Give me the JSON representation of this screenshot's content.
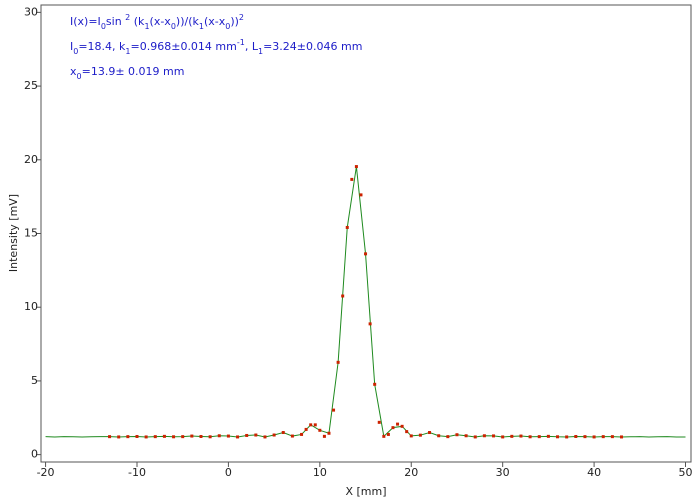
{
  "chart_data": {
    "type": "scatter",
    "xlabel": "X [mm]",
    "ylabel": "Intensity [mV]",
    "annotations": [
      [
        "I(x)=I",
        "0",
        "sin ",
        "2",
        " (k",
        "1",
        "(x-x",
        "0",
        "))/(k",
        "1",
        "(x-x",
        "0",
        "))",
        "2"
      ],
      [
        "I",
        "0",
        "=18.4,  k",
        "1",
        "=0.968±0.014 mm",
        "-1",
        ",   L",
        "1",
        "=3.24±0.046 mm"
      ],
      [
        "x",
        "0",
        "=13.9±  0.019 mm"
      ]
    ],
    "annotation_color": "#1c1cc8",
    "xlim": [
      -20.5,
      50.6
    ],
    "xticks": [
      -20,
      -10,
      0,
      10,
      20,
      30,
      40,
      50
    ],
    "ylim": [
      -0.5,
      30.5
    ],
    "yticks": [
      0,
      5,
      10,
      15,
      20,
      25,
      30
    ],
    "grid": false,
    "series": [
      {
        "type": "line",
        "color": "#1f8a1f",
        "x": [
          -20,
          -19,
          -18,
          -17,
          -16,
          -15,
          -14,
          -13,
          -12,
          -11,
          -10,
          -9,
          -8,
          -7,
          -6,
          -5,
          -4,
          -3,
          -2,
          -1,
          0,
          1,
          2,
          3,
          4,
          5,
          6,
          7,
          8,
          9,
          10,
          11,
          12,
          13,
          14,
          15,
          16,
          17,
          18,
          19,
          20,
          21,
          22,
          23,
          24,
          25,
          26,
          27,
          28,
          29,
          30,
          31,
          32,
          33,
          34,
          35,
          36,
          37,
          38,
          39,
          40,
          41,
          42,
          43,
          44,
          45,
          46,
          47,
          48,
          49,
          50
        ],
        "values": [
          1.22,
          1.2,
          1.22,
          1.21,
          1.2,
          1.21,
          1.22,
          1.22,
          1.2,
          1.22,
          1.23,
          1.2,
          1.22,
          1.24,
          1.21,
          1.22,
          1.26,
          1.23,
          1.21,
          1.28,
          1.26,
          1.2,
          1.3,
          1.33,
          1.2,
          1.33,
          1.5,
          1.26,
          1.37,
          2.02,
          1.65,
          1.45,
          6.26,
          15.41,
          19.54,
          13.62,
          4.77,
          1.24,
          1.83,
          1.92,
          1.27,
          1.32,
          1.5,
          1.28,
          1.22,
          1.35,
          1.28,
          1.2,
          1.28,
          1.27,
          1.2,
          1.24,
          1.26,
          1.21,
          1.22,
          1.24,
          1.21,
          1.2,
          1.23,
          1.22,
          1.2,
          1.22,
          1.22,
          1.2,
          1.21,
          1.22,
          1.2,
          1.21,
          1.22,
          1.2,
          1.2
        ]
      },
      {
        "type": "points",
        "color": "#cc2200",
        "x": [
          -13,
          -12,
          -11,
          -10,
          -9,
          -8,
          -7,
          -6,
          -5,
          -4,
          -3,
          -2,
          -1,
          0,
          1,
          2,
          3,
          4,
          5,
          6,
          7,
          8,
          8.5,
          9,
          9.5,
          10,
          10.5,
          11,
          11.5,
          12,
          12.5,
          13,
          13.5,
          14,
          14.5,
          15,
          15.5,
          16,
          16.5,
          17,
          17.5,
          18,
          18.5,
          19,
          19.5,
          20,
          21,
          22,
          23,
          24,
          25,
          26,
          27,
          28,
          29,
          30,
          31,
          32,
          33,
          34,
          35,
          36,
          37,
          38,
          39,
          40,
          41,
          42,
          43
        ],
        "values": [
          1.22,
          1.2,
          1.22,
          1.23,
          1.2,
          1.22,
          1.24,
          1.21,
          1.22,
          1.26,
          1.23,
          1.21,
          1.28,
          1.26,
          1.2,
          1.3,
          1.33,
          1.2,
          1.33,
          1.5,
          1.26,
          1.37,
          1.71,
          2.02,
          2.02,
          1.65,
          1.24,
          1.45,
          3.02,
          6.26,
          10.76,
          15.41,
          18.67,
          19.54,
          17.62,
          13.62,
          8.87,
          4.77,
          2.19,
          1.24,
          1.37,
          1.83,
          2.07,
          1.92,
          1.56,
          1.27,
          1.32,
          1.5,
          1.28,
          1.22,
          1.35,
          1.28,
          1.2,
          1.28,
          1.27,
          1.2,
          1.24,
          1.26,
          1.21,
          1.22,
          1.24,
          1.21,
          1.2,
          1.23,
          1.22,
          1.2,
          1.22,
          1.22,
          1.2
        ]
      }
    ]
  }
}
